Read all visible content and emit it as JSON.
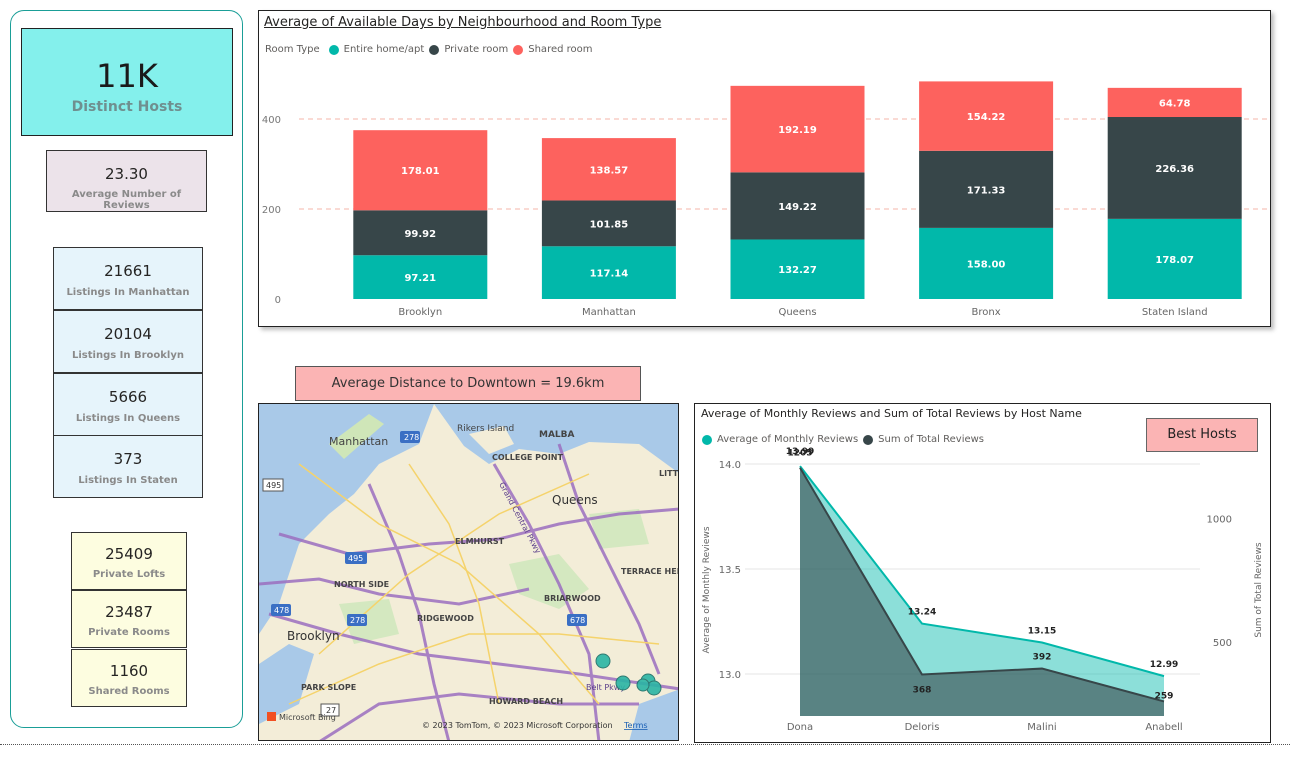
{
  "kpis": {
    "main": {
      "value": "11K",
      "label": "Distinct Hosts",
      "color": "#84f0ec"
    },
    "reviews": {
      "value": "23.30",
      "label": "Average Number of Reviews",
      "color": "#ece3ea"
    },
    "listings": [
      {
        "value": "21661",
        "label": "Listings In Manhattan"
      },
      {
        "value": "20104",
        "label": "Listings In Brooklyn"
      },
      {
        "value": "5666",
        "label": "Listings In Queens"
      },
      {
        "value": "373",
        "label": "Listings In Staten"
      }
    ],
    "rooms": [
      {
        "value": "25409",
        "label": "Private Lofts"
      },
      {
        "value": "23487",
        "label": "Private Rooms"
      },
      {
        "value": "1160",
        "label": "Shared Rooms"
      }
    ]
  },
  "distance_banner": "Average Distance to Downtown = 19.6km",
  "best_hosts_label": "Best Hosts",
  "map": {
    "labels": [
      "Manhattan",
      "Rikers Island",
      "MALBA",
      "COLLEGE POINT",
      "Queens",
      "ELMHURST",
      "Grand Central Pkwy",
      "NORTH SIDE",
      "TERRACE HEIGHTS",
      "BRIARWOOD",
      "RIDGEWOOD",
      "Brooklyn",
      "PARK SLOPE",
      "HOWARD BEACH",
      "Belt Pkwy",
      "LITT"
    ],
    "road_shields": [
      "278",
      "495",
      "495",
      "478",
      "278",
      "678",
      "27"
    ],
    "attribution": "© 2023 TomTom, © 2023 Microsoft Corporation",
    "terms": "Terms",
    "bing": "Microsoft Bing"
  },
  "chart_data": [
    {
      "type": "bar",
      "stacked": true,
      "title": "Average of Available Days by Neighbourhood and Room Type",
      "legend_title": "Room Type",
      "legend_position": "top-left",
      "categories": [
        "Brooklyn",
        "Manhattan",
        "Queens",
        "Bronx",
        "Staten Island"
      ],
      "series": [
        {
          "name": "Entire home/apt",
          "color": "#01b8aa",
          "values": [
            97.21,
            117.14,
            132.27,
            158.0,
            178.07
          ]
        },
        {
          "name": "Private room",
          "color": "#374649",
          "values": [
            99.92,
            101.85,
            149.22,
            171.33,
            226.36
          ]
        },
        {
          "name": "Shared room",
          "color": "#fd625e",
          "values": [
            178.01,
            138.57,
            192.19,
            154.22,
            64.78
          ]
        }
      ],
      "y_ticks": [
        0,
        200,
        400
      ],
      "ylim": [
        0,
        530
      ],
      "grid": true
    },
    {
      "type": "area",
      "title": "Average of Monthly Reviews and Sum of Total Reviews by Host Name",
      "legend_position": "top-left",
      "categories": [
        "Dona",
        "Deloris",
        "Malini",
        "Anabell"
      ],
      "series": [
        {
          "name": "Average of Monthly Reviews",
          "axis": "left",
          "color": "#01b8aa",
          "values": [
            13.99,
            13.24,
            13.15,
            12.99
          ],
          "labels": [
            "13.99",
            "13.24",
            "13.15",
            "12.99"
          ]
        },
        {
          "name": "Sum of Total Reviews",
          "axis": "right",
          "color": "#374649",
          "values": [
            1205,
            368,
            392,
            259
          ],
          "labels": [
            "1205",
            "368",
            "392",
            "259"
          ]
        }
      ],
      "ylabel_left": "Average of Monthly Reviews",
      "ylabel_right": "Sum of Total Reviews",
      "left_ticks": [
        "13.0",
        "13.5",
        "14.0"
      ],
      "left_range": [
        12.8,
        14.0
      ],
      "right_ticks": [
        "500",
        "1000"
      ],
      "right_range": [
        200,
        1220
      ],
      "grid": true
    }
  ]
}
